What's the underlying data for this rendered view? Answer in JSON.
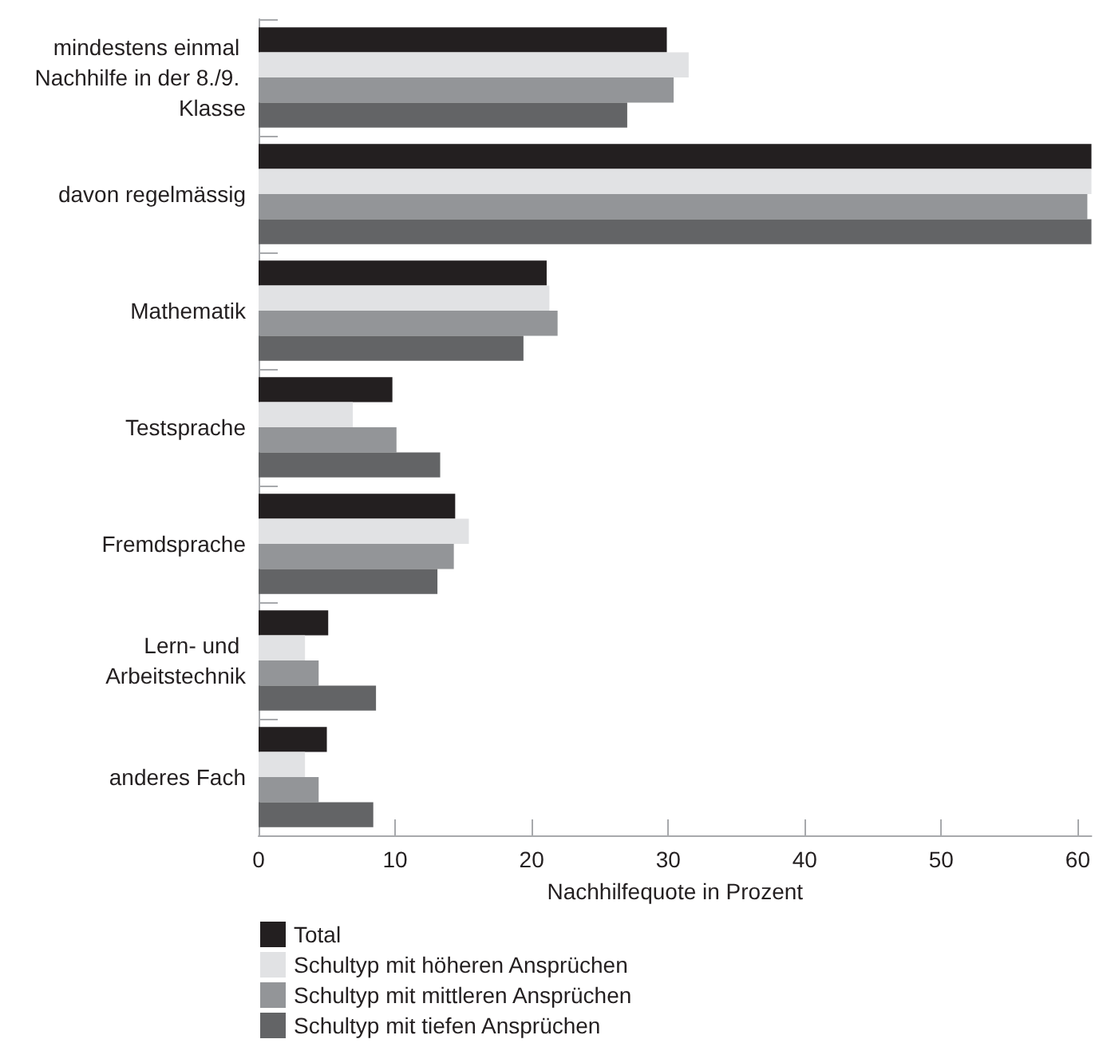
{
  "chart_data": {
    "type": "bar",
    "orientation": "horizontal",
    "xlabel": "Nachhilfequote in Prozent",
    "categories": [
      "mindestens einmal Nachhilfe in der 8./9. Klasse",
      "davon regelmässig",
      "Mathematik",
      "Testsprache",
      "Fremdsprache",
      "Lern- und Arbeitstechnik",
      "anderes Fach"
    ],
    "series": [
      {
        "name": "Total",
        "color": "#231f20",
        "values": [
          29.9,
          61,
          21.1,
          9.8,
          14.4,
          5.1,
          5.0
        ]
      },
      {
        "name": "Schultyp mit höheren Ansprüchen",
        "color": "#e1e2e4",
        "values": [
          31.5,
          61,
          21.3,
          6.9,
          15.4,
          3.4,
          3.4
        ]
      },
      {
        "name": "Schultyp mit mittleren Ansprüchen",
        "color": "#939598",
        "values": [
          30.4,
          60.7,
          21.9,
          10.1,
          14.3,
          4.4,
          4.4
        ]
      },
      {
        "name": "Schultyp mit tiefen Ansprüchen",
        "color": "#636466",
        "values": [
          27.0,
          61,
          19.4,
          13.3,
          13.1,
          8.6,
          8.4
        ]
      }
    ],
    "xlim": [
      0,
      61
    ],
    "xticks": [
      0,
      10,
      20,
      30,
      40,
      50,
      60
    ],
    "grid": false,
    "legend": "bottom left"
  }
}
